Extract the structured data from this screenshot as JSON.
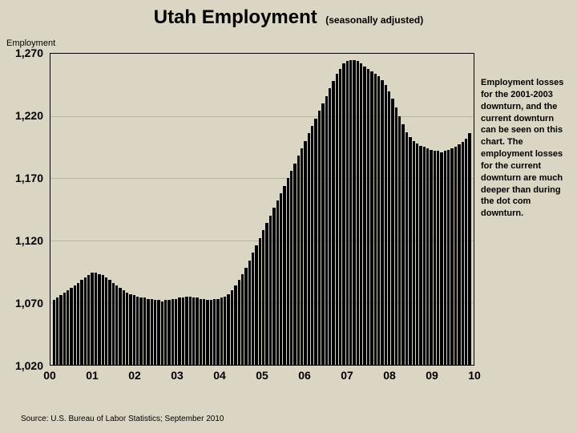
{
  "title": {
    "main": "Utah Employment",
    "sub": "(seasonally adjusted)"
  },
  "y_axis_label": "Employment",
  "annotation_text": "Employment losses for the 2001-2003 downturn, and the current downturn can be seen on this chart. The employment losses for the current downturn are much deeper than during the dot com downturn.",
  "source_text": "Source: U.S. Bureau of Labor Statistics; September 2010",
  "chart": {
    "type": "bar",
    "background_color": "#dad6c3",
    "bar_color": "#000000",
    "grid_color": "#b8b59f",
    "border_color": "#000000",
    "ylim": [
      1020,
      1270
    ],
    "ytick_step": 50,
    "y_ticks": [
      "1,020",
      "1,070",
      "1,120",
      "1,170",
      "1,220",
      "1,270"
    ],
    "x_labels": [
      "00",
      "01",
      "02",
      "03",
      "04",
      "05",
      "06",
      "07",
      "08",
      "09",
      "10"
    ],
    "title_fontsize": 24,
    "subtitle_fontsize": 12,
    "axis_tick_fontsize": 14,
    "annotation_fontsize": 11,
    "source_fontsize": 10,
    "values": [
      1072,
      1074,
      1076,
      1078,
      1080,
      1082,
      1084,
      1086,
      1088,
      1090,
      1092,
      1094,
      1094,
      1093,
      1092,
      1090,
      1088,
      1086,
      1084,
      1082,
      1080,
      1078,
      1077,
      1076,
      1075,
      1074,
      1074,
      1073,
      1073,
      1072,
      1072,
      1071,
      1072,
      1072,
      1073,
      1073,
      1074,
      1074,
      1075,
      1075,
      1074,
      1074,
      1073,
      1073,
      1072,
      1072,
      1073,
      1073,
      1074,
      1075,
      1077,
      1080,
      1084,
      1088,
      1093,
      1098,
      1104,
      1110,
      1116,
      1122,
      1128,
      1134,
      1140,
      1146,
      1152,
      1158,
      1164,
      1170,
      1176,
      1182,
      1188,
      1194,
      1200,
      1206,
      1212,
      1218,
      1224,
      1230,
      1236,
      1242,
      1248,
      1254,
      1258,
      1262,
      1264,
      1265,
      1265,
      1264,
      1262,
      1260,
      1258,
      1256,
      1254,
      1252,
      1249,
      1245,
      1240,
      1234,
      1227,
      1220,
      1213,
      1207,
      1203,
      1200,
      1198,
      1196,
      1195,
      1194,
      1193,
      1192,
      1192,
      1191,
      1192,
      1193,
      1194,
      1195,
      1197,
      1199,
      1202,
      1206
    ]
  }
}
